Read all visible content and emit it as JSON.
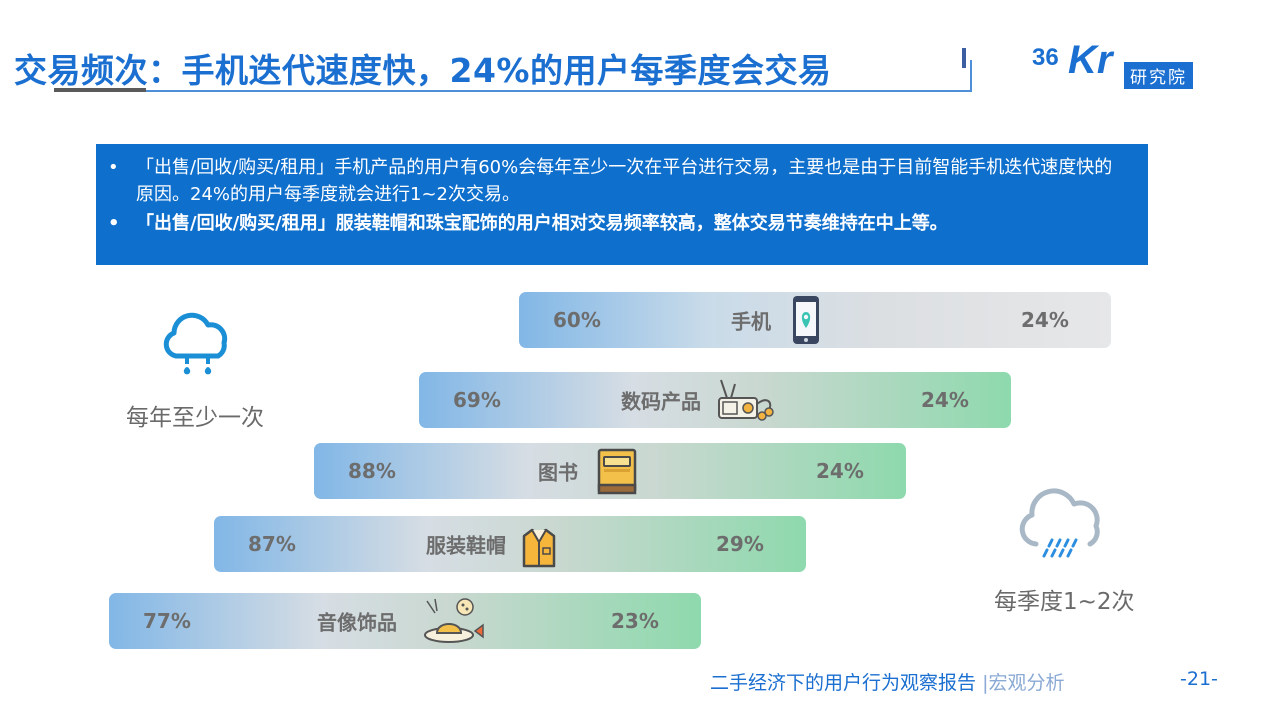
{
  "title": "交易频次：手机迭代速度快，24%的用户每季度会交易",
  "logo": {
    "num": "36",
    "kr": "Kr",
    "org": "研究院"
  },
  "summary": [
    {
      "bullet": "•",
      "text": "「出售/回收/购买/租用」手机产品的用户有60%会每年至少一次在平台进行交易，主要也是由于目前智能手机迭代速度快的原因。24%的用户每季度就会进行1~2次交易。"
    },
    {
      "bullet": "•",
      "text": "「出售/回收/购买/租用」服装鞋帽和珠宝配饰的用户相对交易频率较高，整体交易节奏维持在中上等。"
    }
  ],
  "legend": {
    "yearly": "每年至少一次",
    "quarterly": "每季度1~2次"
  },
  "chart_data": {
    "type": "bar",
    "categories": [
      "手机",
      "数码产品",
      "图书",
      "服装鞋帽",
      "音像饰品"
    ],
    "series": [
      {
        "name": "每年至少一次",
        "values": [
          60,
          69,
          88,
          87,
          77
        ]
      },
      {
        "name": "每季度1~2次",
        "values": [
          24,
          24,
          24,
          29,
          23
        ]
      }
    ],
    "labels_yearly": [
      "60%",
      "69%",
      "88%",
      "87%",
      "77%"
    ],
    "labels_quarterly": [
      "24%",
      "24%",
      "24%",
      "29%",
      "23%"
    ],
    "icons": [
      "phone-icon",
      "radio-icon",
      "book-icon",
      "shirt-icon",
      "hat-icon"
    ],
    "colors": {
      "yearly_end": "#82b7e6",
      "quarterly_end": "#8ed9ad",
      "neutral": "#e6e7e8"
    }
  },
  "footer": {
    "report": "二手经济下的用户行为观察报告",
    "section": "|宏观分析",
    "page": "-21-"
  }
}
